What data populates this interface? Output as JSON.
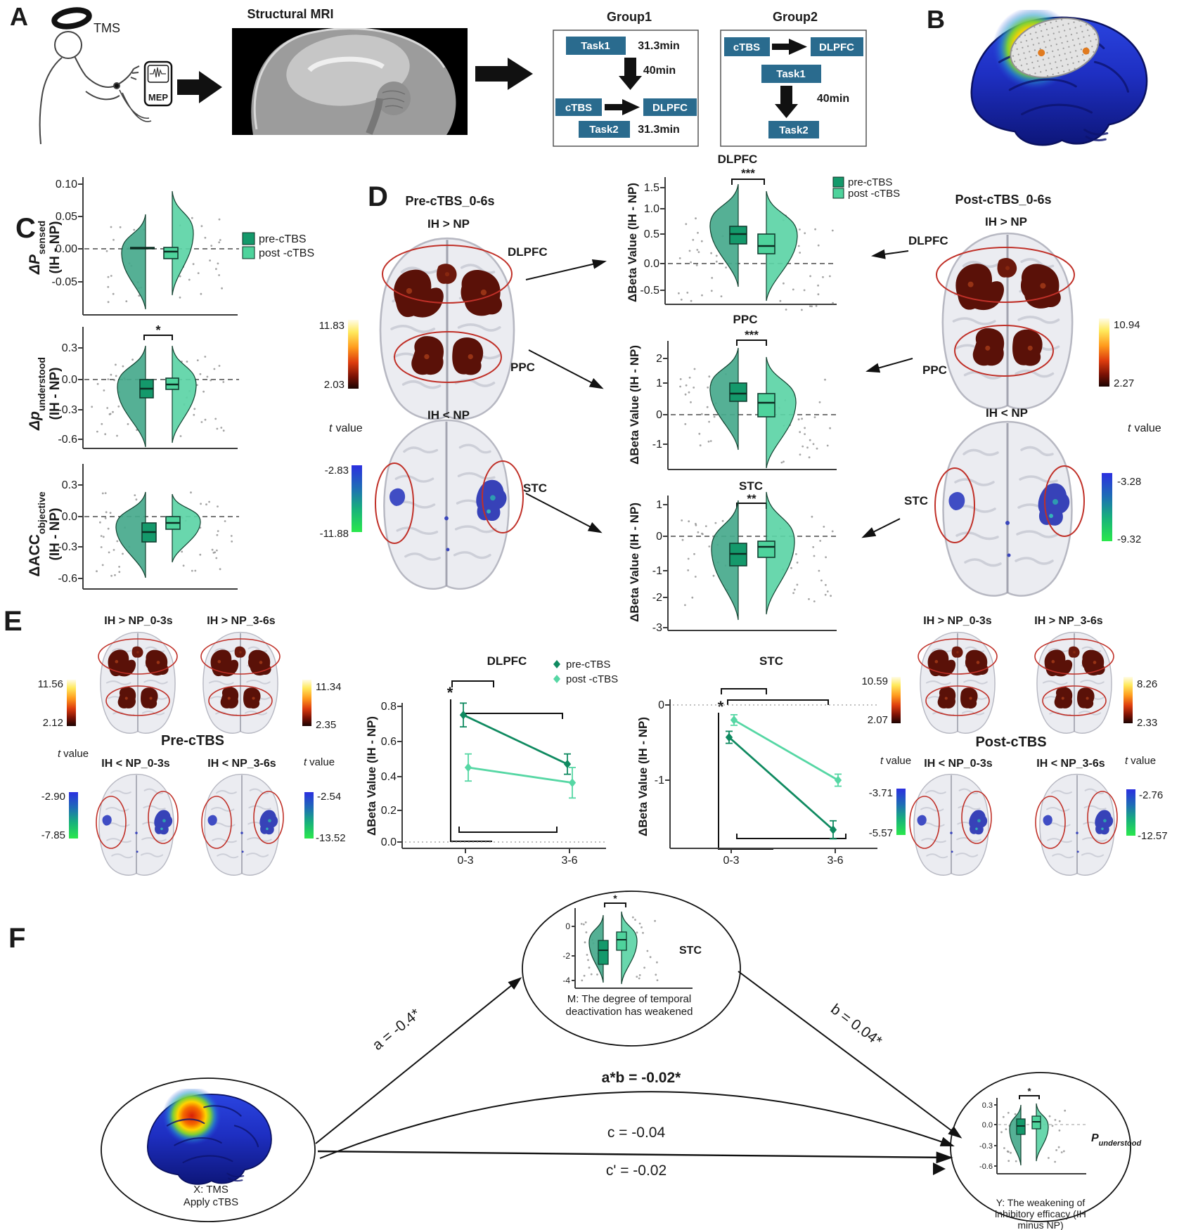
{
  "colors": {
    "pre": "#14996b",
    "post": "#4ed39c",
    "vioPre": "#46a98c",
    "vioPost": "#5cd4a6",
    "preLine": "#0f8a60",
    "postLine": "#56d7a4",
    "chip": "#2a6b8e",
    "annotation": "#c03028"
  },
  "legend": {
    "pre": "pre-cTBS",
    "post": "post -cTBS"
  },
  "panelA": {
    "label": "A",
    "tms": "TMS",
    "mep": "MEP",
    "mri_title": "Structural MRI",
    "group1": {
      "title": "Group1",
      "task1": "Task1",
      "task1_time": "31.3min",
      "interval": "40min",
      "ctbs": "cTBS",
      "target": "DLPFC",
      "task2": "Task2",
      "task2_time": "31.3min"
    },
    "group2": {
      "title": "Group2",
      "ctbs": "cTBS",
      "target": "DLPFC",
      "task1": "Task1",
      "interval": "40min",
      "task2": "Task2"
    }
  },
  "panelB": {
    "label": "B"
  },
  "panelC": {
    "label": "C",
    "plots": [
      {
        "ylabel": "ΔP",
        "ylabel_sub": "sensed",
        "ylabel_paren": "(IH - NP)",
        "yticks": [
          "0.10",
          "0.05",
          "0.00",
          "-0.05"
        ],
        "sig": ""
      },
      {
        "ylabel": "Δp",
        "ylabel_sub": "understood",
        "ylabel_paren": "(IH - NP)",
        "yticks": [
          "0.3",
          "0.0",
          "-0.3",
          "-0.6"
        ],
        "sig": "*"
      },
      {
        "ylabel": "ΔACC",
        "ylabel_sub": "objective",
        "ylabel_paren": "(IH - NP)",
        "yticks": [
          "0.3",
          "0.0",
          "-0.3",
          "-0.6"
        ],
        "sig": ""
      }
    ]
  },
  "panelD": {
    "label": "D",
    "left": {
      "title": "Pre-cTBS_0-6s",
      "contrast_pos": "IH > NP",
      "contrast_neg": "IH < NP",
      "dlpfc": "DLPFC",
      "ppc": "PPC",
      "stc": "STC",
      "t": "t",
      "t_rest": "value",
      "hot_max": "11.83",
      "hot_min": "2.03",
      "cool_max": "-2.83",
      "cool_min": "-11.88"
    },
    "right": {
      "title": "Post-cTBS_0-6s",
      "contrast_pos": "IH > NP",
      "contrast_neg": "IH < NP",
      "dlpfc": "DLPFC",
      "ppc": "PPC",
      "stc": "STC",
      "t": "t",
      "t_rest": "value",
      "hot_max": "10.94",
      "hot_min": "2.27",
      "cool_max": "-3.28",
      "cool_min": "-9.32"
    },
    "violin_plots": [
      {
        "title": "DLPFC",
        "sig": "***",
        "ylabel": "ΔBeta Value (IH - NP)",
        "yticks": [
          "1.5",
          "1.0",
          "0.5",
          "0.0",
          "-0.5"
        ],
        "medians": {
          "pre": 0.58,
          "post": 0.35
        }
      },
      {
        "title": "PPC",
        "sig": "***",
        "ylabel": "ΔBeta Value (IH - NP)",
        "yticks": [
          "2",
          "1",
          "0",
          "-1"
        ],
        "medians": {
          "pre": 0.75,
          "post": 0.42
        }
      },
      {
        "title": "STC",
        "sig": "**",
        "ylabel": "ΔBeta Value (IH - NP)",
        "yticks": [
          "1",
          "0",
          "-1",
          "-2",
          "-3"
        ],
        "medians": {
          "pre": -0.55,
          "post": -0.3
        }
      }
    ]
  },
  "panelE": {
    "label": "E",
    "left": {
      "top_titles": [
        "IH > NP_0-3s",
        "IH > NP_3-6s"
      ],
      "bottom_titles": [
        "IH < NP_0-3s",
        "IH < NP_3-6s"
      ],
      "group_label": "Pre-cTBS",
      "hot1": {
        "max": "11.56",
        "min": "2.12"
      },
      "hot2": {
        "max": "11.34",
        "min": "2.35"
      },
      "cool1": {
        "max": "-2.90",
        "min": "-7.85"
      },
      "cool2": {
        "max": "-2.54",
        "min": "-13.52"
      },
      "t": "t",
      "t_rest": "value"
    },
    "right": {
      "top_titles": [
        "IH > NP_0-3s",
        "IH > NP_3-6s"
      ],
      "bottom_titles": [
        "IH < NP_0-3s",
        "IH < NP_3-6s"
      ],
      "group_label": "Post-cTBS",
      "hot1": {
        "max": "10.59",
        "min": "2.07"
      },
      "hot2": {
        "max": "8.26",
        "min": "2.33"
      },
      "cool1": {
        "max": "-3.71",
        "min": "-5.57"
      },
      "cool2": {
        "max": "-2.76",
        "min": "-12.57"
      },
      "t": "t",
      "t_rest": "value"
    },
    "dlpfc_chart": {
      "title": "DLPFC",
      "sig": "*",
      "ylabel": "ΔBeta Value (IH - NP)",
      "yticks": [
        "0.8",
        "0.6",
        "0.4",
        "0.2",
        "0.0"
      ],
      "xticks": [
        "0-3",
        "3-6"
      ]
    },
    "stc_chart": {
      "title": "STC",
      "sig": "*",
      "ylabel": "ΔBeta Value (IH - NP)",
      "yticks": [
        "0",
        "-1"
      ],
      "xticks": [
        "0-3",
        "3-6"
      ]
    }
  },
  "panelF": {
    "label": "F",
    "x_node": {
      "line1": "X: TMS",
      "line2": "Apply cTBS"
    },
    "m_node": {
      "yticks": [
        "0",
        "-2",
        "-4"
      ],
      "region": "STC",
      "sig": "*",
      "caption_line1": "M: The degree of temporal",
      "caption_line2": "deactivation has weakened"
    },
    "y_node": {
      "yticks": [
        "0.3",
        "0.0",
        "-0.3",
        "-0.6"
      ],
      "p_main": "P",
      "p_sub": "understood",
      "sig": "*",
      "caption_line1": "Y: The weakening of",
      "caption_line2": "inhibitory efficacy (IH",
      "caption_line3": "minus NP)"
    },
    "paths": {
      "a": "a = -0.4*",
      "b": "b = 0.04*",
      "ab": "a*b = -0.02*",
      "c": "c = -0.04",
      "cprime": "c' = -0.02"
    }
  },
  "chart_data": [
    {
      "id": "panelE-dlpfc",
      "type": "line",
      "title": "DLPFC",
      "x": [
        "0-3",
        "3-6"
      ],
      "ylabel": "ΔBeta Value (IH - NP)",
      "ylim": [
        0,
        0.85
      ],
      "sig": "*",
      "series": [
        {
          "name": "pre-cTBS",
          "values": [
            0.75,
            0.46
          ],
          "errors": [
            0.07,
            0.06
          ]
        },
        {
          "name": "post -cTBS",
          "values": [
            0.44,
            0.35
          ],
          "errors": [
            0.08,
            0.09
          ]
        }
      ]
    },
    {
      "id": "panelE-stc",
      "type": "line",
      "title": "STC",
      "x": [
        "0-3",
        "3-6"
      ],
      "ylabel": "ΔBeta Value (IH - NP)",
      "ylim": [
        -1.9,
        0.1
      ],
      "sig": "*",
      "series": [
        {
          "name": "pre-cTBS",
          "values": [
            -0.43,
            -1.66
          ],
          "errors": [
            0.08,
            0.12
          ]
        },
        {
          "name": "post -cTBS",
          "values": [
            -0.2,
            -1.0
          ],
          "errors": [
            0.07,
            0.08
          ]
        }
      ]
    }
  ]
}
